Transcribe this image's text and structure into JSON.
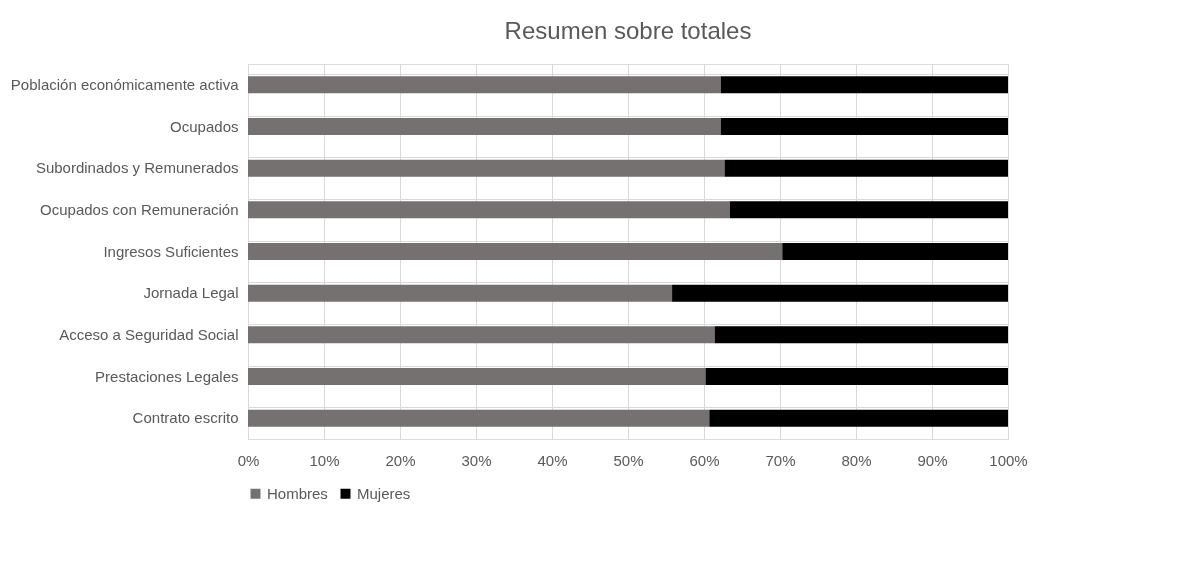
{
  "chart_data": {
    "type": "bar",
    "title": "Resumen sobre totales",
    "orientation": "horizontal",
    "stacked": true,
    "categories": [
      "Población económicamente activa",
      "Ocupados",
      "Subordinados y Remunerados",
      "Ocupados con Remuneración",
      "Ingresos Suficientes",
      "Jornada Legal",
      "Acceso a Seguridad Social",
      "Prestaciones Legales",
      "Contrato escrito"
    ],
    "series": [
      {
        "name": "Hombres",
        "color": "#767171",
        "values": [
          62.2,
          62.2,
          62.7,
          63.4,
          70.3,
          55.8,
          61.4,
          60.2,
          60.7
        ]
      },
      {
        "name": "Mujeres",
        "color": "#000000",
        "values": [
          37.8,
          37.8,
          37.3,
          36.6,
          29.7,
          44.2,
          38.6,
          39.8,
          39.3
        ]
      }
    ],
    "xlim": [
      0,
      100
    ],
    "xticks": [
      {
        "value": 0,
        "label": "0%"
      },
      {
        "value": 10,
        "label": "10%"
      },
      {
        "value": 20,
        "label": "20%"
      },
      {
        "value": 30,
        "label": "30%"
      },
      {
        "value": 40,
        "label": "40%"
      },
      {
        "value": 50,
        "label": "50%"
      },
      {
        "value": 60,
        "label": "60%"
      },
      {
        "value": 70,
        "label": "70%"
      },
      {
        "value": 80,
        "label": "80%"
      },
      {
        "value": 90,
        "label": "90%"
      },
      {
        "value": 100,
        "label": "100%"
      }
    ],
    "grid": true,
    "legend": "bottom"
  }
}
